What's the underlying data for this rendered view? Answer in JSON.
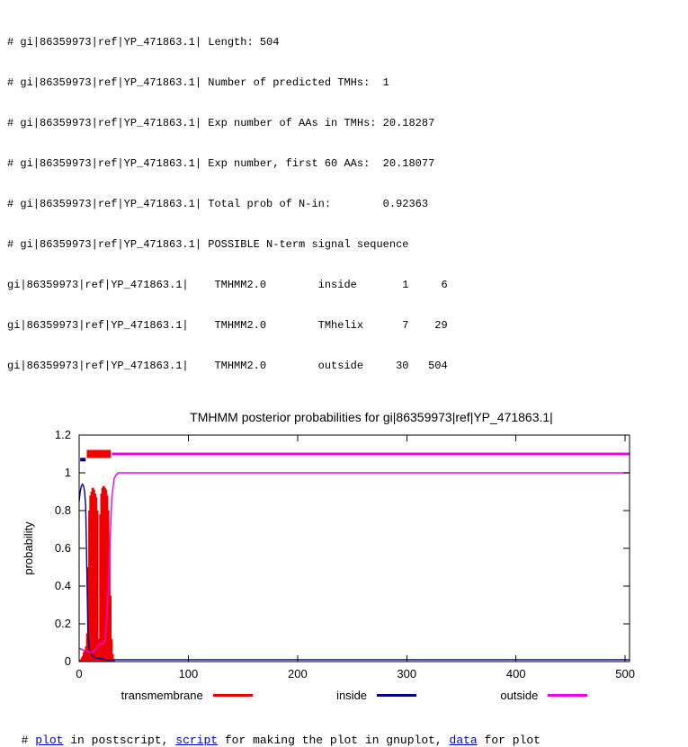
{
  "header": {
    "lines": [
      "# gi|86359973|ref|YP_471863.1| Length: 504",
      "# gi|86359973|ref|YP_471863.1| Number of predicted TMHs:  1",
      "# gi|86359973|ref|YP_471863.1| Exp number of AAs in TMHs: 20.18287",
      "# gi|86359973|ref|YP_471863.1| Exp number, first 60 AAs:  20.18077",
      "# gi|86359973|ref|YP_471863.1| Total prob of N-in:        0.92363",
      "# gi|86359973|ref|YP_471863.1| POSSIBLE N-term signal sequence",
      "gi|86359973|ref|YP_471863.1|    TMHMM2.0        inside       1     6",
      "gi|86359973|ref|YP_471863.1|    TMHMM2.0        TMhelix      7    29",
      "gi|86359973|ref|YP_471863.1|    TMHMM2.0        outside     30   504"
    ]
  },
  "chart_data": {
    "type": "line",
    "title": "TMHMM posterior probabilities for gi|86359973|ref|YP_471863.1|",
    "xlabel": "",
    "ylabel": "probability",
    "xlim": [
      0,
      504
    ],
    "ylim": [
      0,
      1.2
    ],
    "x_ticks": [
      0,
      100,
      200,
      300,
      400,
      500
    ],
    "y_ticks": [
      0,
      0.2,
      0.4,
      0.6,
      0.8,
      1,
      1.2
    ],
    "grid": false,
    "legend_position": "bottom",
    "series": [
      {
        "name": "transmembrane",
        "color": "#ee0000",
        "style": "impulses",
        "points": [
          [
            1,
            0.01
          ],
          [
            2,
            0.02
          ],
          [
            3,
            0.03
          ],
          [
            4,
            0.05
          ],
          [
            5,
            0.06
          ],
          [
            6,
            0.08
          ],
          [
            7,
            0.15
          ],
          [
            8,
            0.5
          ],
          [
            9,
            0.8
          ],
          [
            10,
            0.88
          ],
          [
            11,
            0.9
          ],
          [
            12,
            0.92
          ],
          [
            13,
            0.92
          ],
          [
            14,
            0.91
          ],
          [
            15,
            0.89
          ],
          [
            16,
            0.87
          ],
          [
            17,
            0.8
          ],
          [
            18,
            0.12
          ],
          [
            19,
            0.78
          ],
          [
            20,
            0.89
          ],
          [
            21,
            0.92
          ],
          [
            22,
            0.93
          ],
          [
            23,
            0.93
          ],
          [
            24,
            0.92
          ],
          [
            25,
            0.91
          ],
          [
            26,
            0.88
          ],
          [
            27,
            0.8
          ],
          [
            28,
            0.62
          ],
          [
            29,
            0.35
          ],
          [
            30,
            0.12
          ],
          [
            31,
            0.04
          ],
          [
            32,
            0.01
          ]
        ]
      },
      {
        "name": "inside",
        "color": "#00008b",
        "style": "line",
        "points": [
          [
            0,
            0.85
          ],
          [
            1,
            0.9
          ],
          [
            2,
            0.93
          ],
          [
            3,
            0.94
          ],
          [
            4,
            0.93
          ],
          [
            5,
            0.9
          ],
          [
            6,
            0.82
          ],
          [
            7,
            0.5
          ],
          [
            8,
            0.18
          ],
          [
            9,
            0.08
          ],
          [
            10,
            0.05
          ],
          [
            12,
            0.03
          ],
          [
            15,
            0.02
          ],
          [
            20,
            0.015
          ],
          [
            25,
            0.01
          ],
          [
            30,
            0.01
          ],
          [
            100,
            0.01
          ],
          [
            200,
            0.01
          ],
          [
            300,
            0.01
          ],
          [
            400,
            0.01
          ],
          [
            504,
            0.01
          ]
        ]
      },
      {
        "name": "outside",
        "color": "#ee00ee",
        "style": "line",
        "points": [
          [
            0,
            0.07
          ],
          [
            2,
            0.065
          ],
          [
            4,
            0.06
          ],
          [
            6,
            0.06
          ],
          [
            8,
            0.055
          ],
          [
            10,
            0.05
          ],
          [
            12,
            0.05
          ],
          [
            14,
            0.06
          ],
          [
            16,
            0.07
          ],
          [
            18,
            0.09
          ],
          [
            20,
            0.1
          ],
          [
            22,
            0.09
          ],
          [
            24,
            0.12
          ],
          [
            26,
            0.3
          ],
          [
            28,
            0.6
          ],
          [
            30,
            0.87
          ],
          [
            32,
            0.97
          ],
          [
            34,
            0.99
          ],
          [
            36,
            1.0
          ],
          [
            100,
            1.0
          ],
          [
            200,
            1.0
          ],
          [
            300,
            1.0
          ],
          [
            400,
            1.0
          ],
          [
            504,
            1.0
          ]
        ]
      }
    ],
    "regions": [
      {
        "label": "inside",
        "start": 1,
        "end": 6,
        "y": 1.07,
        "color": "#00008b",
        "thickness": 4
      },
      {
        "label": "TMhelix",
        "start": 7,
        "end": 29,
        "y": 1.1,
        "color": "#ee0000",
        "thickness": 9
      },
      {
        "label": "outside",
        "start": 30,
        "end": 504,
        "y": 1.1,
        "color": "#ee00ee",
        "thickness": 3
      }
    ],
    "legend": [
      {
        "label": "transmembrane",
        "color": "#ee0000"
      },
      {
        "label": "inside",
        "color": "#00008b"
      },
      {
        "label": "outside",
        "color": "#ee00ee"
      }
    ]
  },
  "footer": {
    "segments": [
      {
        "text": "# "
      },
      {
        "text": "plot"
      },
      {
        "text": " in postscript, "
      },
      {
        "text": "script"
      },
      {
        "text": " for making the plot in gnuplot, "
      },
      {
        "text": "data"
      },
      {
        "text": " for plot"
      }
    ]
  }
}
